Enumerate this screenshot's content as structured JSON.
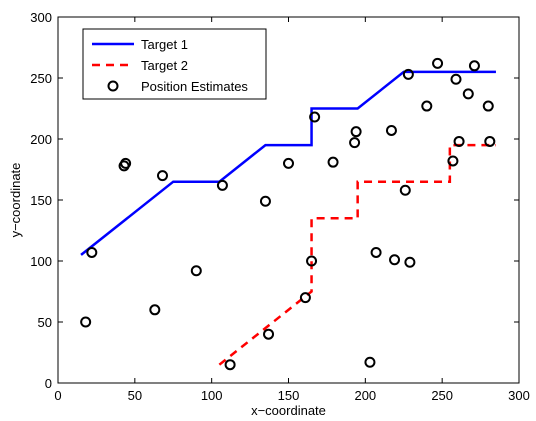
{
  "chart_data": {
    "type": "line",
    "title": "",
    "xlabel": "x−coordinate",
    "ylabel": "y−coordinate",
    "xlim": [
      0,
      300
    ],
    "ylim": [
      0,
      300
    ],
    "xticks": [
      0,
      50,
      100,
      150,
      200,
      250,
      300
    ],
    "yticks": [
      0,
      50,
      100,
      150,
      200,
      250,
      300
    ],
    "x_tick_labels": [
      "0",
      "50",
      "100",
      "150",
      "200",
      "250",
      "300"
    ],
    "y_tick_labels": [
      "0",
      "50",
      "100",
      "150",
      "200",
      "250",
      "300"
    ],
    "grid": false,
    "legend_position": "top-left",
    "series": [
      {
        "name": "Target 1",
        "style": "solid-line",
        "color": "#0000ff",
        "x": [
          15,
          75,
          105,
          135,
          165,
          165,
          195,
          225,
          285
        ],
        "y": [
          105,
          165,
          165,
          195,
          195,
          225,
          225,
          255,
          255
        ]
      },
      {
        "name": "Target 2",
        "style": "dashed-line",
        "color": "#ff0000",
        "x": [
          105,
          165,
          165,
          195,
          195,
          255,
          255,
          285
        ],
        "y": [
          15,
          75,
          135,
          135,
          165,
          165,
          195,
          195
        ]
      },
      {
        "name": "Position Estimates",
        "style": "circle-markers",
        "color": "#000000",
        "x": [
          18,
          22,
          43,
          44,
          63,
          68,
          90,
          107,
          112,
          135,
          137,
          150,
          161,
          165,
          167,
          179,
          193,
          194,
          203,
          207,
          217,
          219,
          226,
          228,
          229,
          240,
          247,
          257,
          259,
          261,
          267,
          271,
          280,
          281
        ],
        "y": [
          50,
          107,
          178,
          180,
          60,
          170,
          92,
          162,
          15,
          149,
          40,
          180,
          70,
          100,
          218,
          181,
          197,
          206,
          17,
          107,
          207,
          101,
          158,
          253,
          99,
          227,
          262,
          182,
          249,
          198,
          237,
          260,
          227,
          198
        ]
      }
    ]
  }
}
